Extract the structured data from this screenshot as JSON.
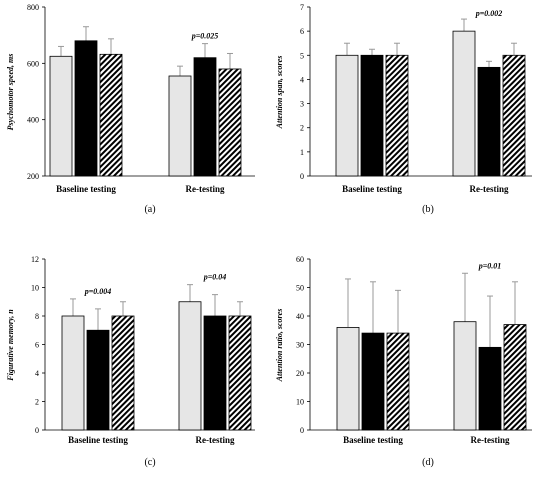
{
  "chart_data": [
    {
      "type": "bar",
      "panel_label": "(a)",
      "categories": [
        "Baseline testing",
        "Re-testing"
      ],
      "ylabel": "Psychomotor speed, ms",
      "ylim": [
        200,
        800
      ],
      "yticks": [
        200,
        400,
        600,
        800
      ],
      "series": [
        {
          "fill": "light-gray",
          "values": [
            625,
            555
          ],
          "errors": [
            35,
            35
          ]
        },
        {
          "fill": "black",
          "values": [
            680,
            620
          ],
          "errors": [
            50,
            50
          ]
        },
        {
          "fill": "hatched",
          "values": [
            632,
            580
          ],
          "errors": [
            55,
            55
          ]
        }
      ],
      "annotations": [
        {
          "category_index": 1,
          "text": "p=0.025"
        }
      ]
    },
    {
      "type": "bar",
      "panel_label": "(b)",
      "categories": [
        "Baseline testing",
        "Re-testing"
      ],
      "ylabel": "Attention span, scores",
      "ylim": [
        0,
        7
      ],
      "yticks": [
        0,
        1,
        2,
        3,
        4,
        5,
        6,
        7
      ],
      "series": [
        {
          "fill": "light-gray",
          "values": [
            5,
            6
          ],
          "errors": [
            0.5,
            0.5
          ]
        },
        {
          "fill": "black",
          "values": [
            5,
            4.5
          ],
          "errors": [
            0.25,
            0.25
          ]
        },
        {
          "fill": "hatched",
          "values": [
            5,
            5
          ],
          "errors": [
            0.5,
            0.5
          ]
        }
      ],
      "annotations": [
        {
          "category_index": 1,
          "text": "p=0.002"
        }
      ]
    },
    {
      "type": "bar",
      "panel_label": "(c)",
      "categories": [
        "Baseline testing",
        "Re-testing"
      ],
      "ylabel": "Figurative memory, n",
      "ylim": [
        0,
        12
      ],
      "yticks": [
        0,
        2,
        4,
        6,
        8,
        10,
        12
      ],
      "series": [
        {
          "fill": "light-gray",
          "values": [
            8,
            9
          ],
          "errors": [
            1.2,
            1.2
          ]
        },
        {
          "fill": "black",
          "values": [
            7,
            8
          ],
          "errors": [
            1.5,
            1.5
          ]
        },
        {
          "fill": "hatched",
          "values": [
            8,
            8
          ],
          "errors": [
            1,
            1
          ]
        }
      ],
      "annotations": [
        {
          "category_index": 0,
          "text": "p=0.004"
        },
        {
          "category_index": 1,
          "text": "p=0.04"
        }
      ]
    },
    {
      "type": "bar",
      "panel_label": "(d)",
      "categories": [
        "Baseline testing",
        "Re-testing"
      ],
      "ylabel": "Attention ratio, scores",
      "ylim": [
        0,
        60
      ],
      "yticks": [
        0,
        10,
        20,
        30,
        40,
        50,
        60
      ],
      "series": [
        {
          "fill": "light-gray",
          "values": [
            36,
            38
          ],
          "errors": [
            17,
            17
          ]
        },
        {
          "fill": "black",
          "values": [
            34,
            29
          ],
          "errors": [
            18,
            18
          ]
        },
        {
          "fill": "hatched",
          "values": [
            34,
            37
          ],
          "errors": [
            15,
            15
          ]
        }
      ],
      "annotations": [
        {
          "category_index": 1,
          "text": "p=0.01"
        }
      ]
    }
  ],
  "colors": {
    "light_gray": "#e6e6e6",
    "black": "#000000",
    "axis": "#000000",
    "errorbar": "#999999"
  }
}
